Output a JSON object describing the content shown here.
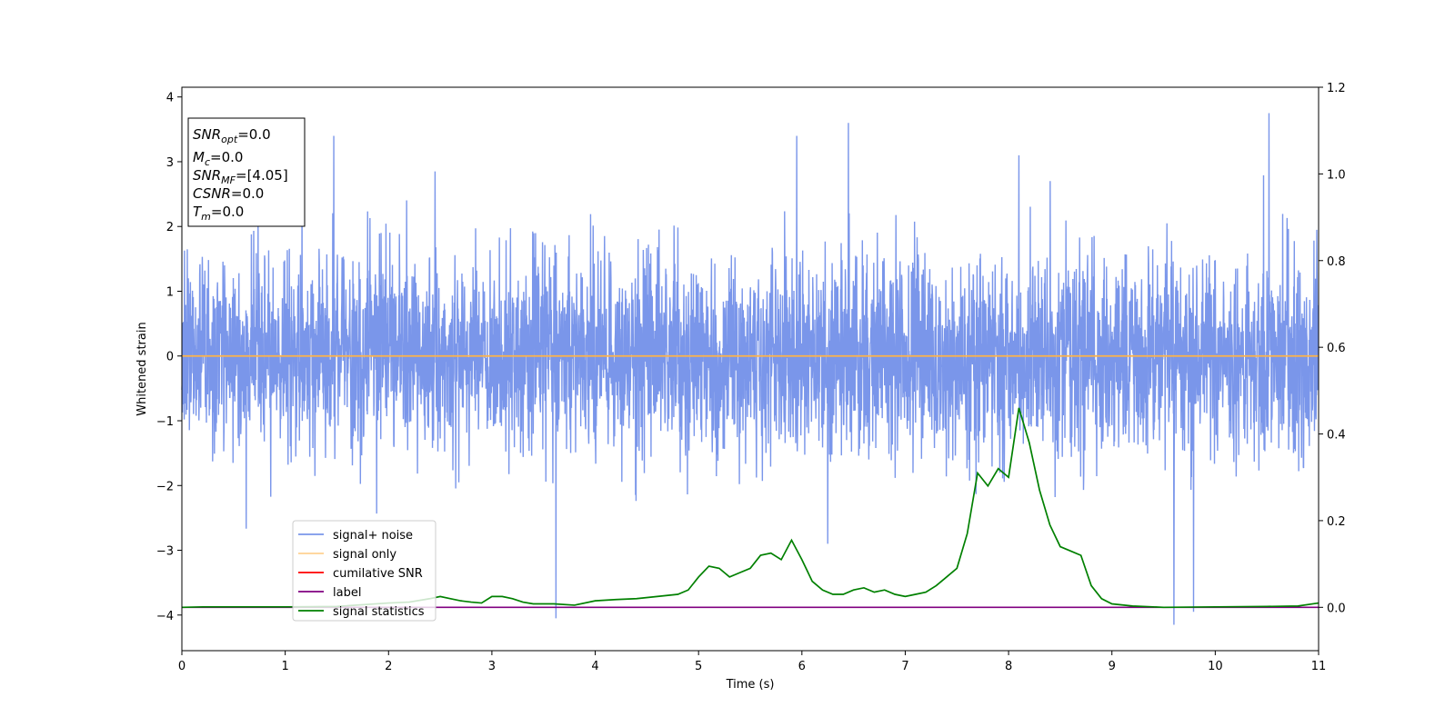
{
  "chart_data": {
    "type": "line",
    "xlabel": "Time (s)",
    "ylabel": "Whitened strain",
    "xlim": [
      0,
      11
    ],
    "ylim": [
      -4.55,
      4.15
    ],
    "y2lim": [
      -0.1,
      1.2
    ],
    "x_ticks": [
      "0",
      "1",
      "2",
      "3",
      "4",
      "5",
      "6",
      "7",
      "8",
      "9",
      "10",
      "11"
    ],
    "y_ticks": [
      "4",
      "3",
      "2",
      "1",
      "0",
      "−1",
      "−2",
      "−3",
      "−4"
    ],
    "y2_ticks": [
      "1.2",
      "1.0",
      "0.8",
      "0.6",
      "0.4",
      "0.2",
      "0.0"
    ],
    "grid": false,
    "legend_position": "lower-left",
    "info_box": {
      "lines": [
        {
          "main": "SNR",
          "sub": "opt",
          "rest": "=0.0"
        },
        {
          "main": "M",
          "sub": "c",
          "rest": "=0.0"
        },
        {
          "main": "SNR",
          "sub": "MF",
          "rest": "=[4.05]"
        },
        {
          "main": "CSNR",
          "sub": "",
          "rest": "=0.0"
        },
        {
          "main": "T",
          "sub": "m",
          "rest": "=0.0"
        }
      ]
    },
    "series": [
      {
        "name": "signal+ noise",
        "color": "#4169e1",
        "axis": "left",
        "kind": "noise",
        "sigma": 0.75,
        "spikes": [
          [
            1.47,
            3.4
          ],
          [
            3.62,
            -4.05
          ],
          [
            6.45,
            3.6
          ],
          [
            9.6,
            -4.15
          ],
          [
            10.52,
            3.75
          ],
          [
            9.79,
            -3.95
          ],
          [
            8.1,
            3.1
          ],
          [
            5.95,
            3.4
          ],
          [
            2.45,
            2.85
          ],
          [
            6.25,
            -2.9
          ]
        ]
      },
      {
        "name": "signal only",
        "color": "#ffb347",
        "axis": "left",
        "x": [
          0,
          11
        ],
        "values": [
          0,
          0
        ]
      },
      {
        "name": "cumilative SNR",
        "color": "#ff0000",
        "axis": "right",
        "x": [],
        "values": []
      },
      {
        "name": "label",
        "color": "#800080",
        "axis": "right",
        "x": [
          0,
          11
        ],
        "values": [
          0,
          0
        ]
      },
      {
        "name": "signal statistics",
        "color": "#008000",
        "axis": "right",
        "x": [
          0,
          0.2,
          0.5,
          1.0,
          1.5,
          2.0,
          2.2,
          2.4,
          2.5,
          2.6,
          2.7,
          2.8,
          2.9,
          3.0,
          3.1,
          3.2,
          3.3,
          3.4,
          3.6,
          3.8,
          4.0,
          4.2,
          4.4,
          4.6,
          4.8,
          4.9,
          5.0,
          5.1,
          5.2,
          5.3,
          5.4,
          5.5,
          5.6,
          5.7,
          5.8,
          5.9,
          6.0,
          6.1,
          6.2,
          6.3,
          6.4,
          6.5,
          6.6,
          6.7,
          6.8,
          6.9,
          7.0,
          7.1,
          7.2,
          7.3,
          7.4,
          7.5,
          7.6,
          7.7,
          7.8,
          7.9,
          8.0,
          8.1,
          8.2,
          8.3,
          8.4,
          8.5,
          8.6,
          8.7,
          8.8,
          8.9,
          9.0,
          9.2,
          9.5,
          10.0,
          10.5,
          10.8,
          11.0
        ],
        "values": [
          0.0,
          0.001,
          0.001,
          0.001,
          0.002,
          0.01,
          0.012,
          0.02,
          0.025,
          0.02,
          0.015,
          0.012,
          0.01,
          0.025,
          0.025,
          0.02,
          0.012,
          0.008,
          0.008,
          0.005,
          0.015,
          0.018,
          0.02,
          0.025,
          0.03,
          0.04,
          0.07,
          0.095,
          0.09,
          0.07,
          0.08,
          0.09,
          0.12,
          0.125,
          0.11,
          0.155,
          0.11,
          0.06,
          0.04,
          0.03,
          0.03,
          0.04,
          0.045,
          0.035,
          0.04,
          0.03,
          0.025,
          0.03,
          0.035,
          0.05,
          0.07,
          0.09,
          0.17,
          0.31,
          0.28,
          0.32,
          0.3,
          0.46,
          0.38,
          0.27,
          0.19,
          0.14,
          0.13,
          0.12,
          0.05,
          0.02,
          0.008,
          0.003,
          0.0,
          0.001,
          0.002,
          0.003,
          0.01
        ]
      }
    ]
  }
}
